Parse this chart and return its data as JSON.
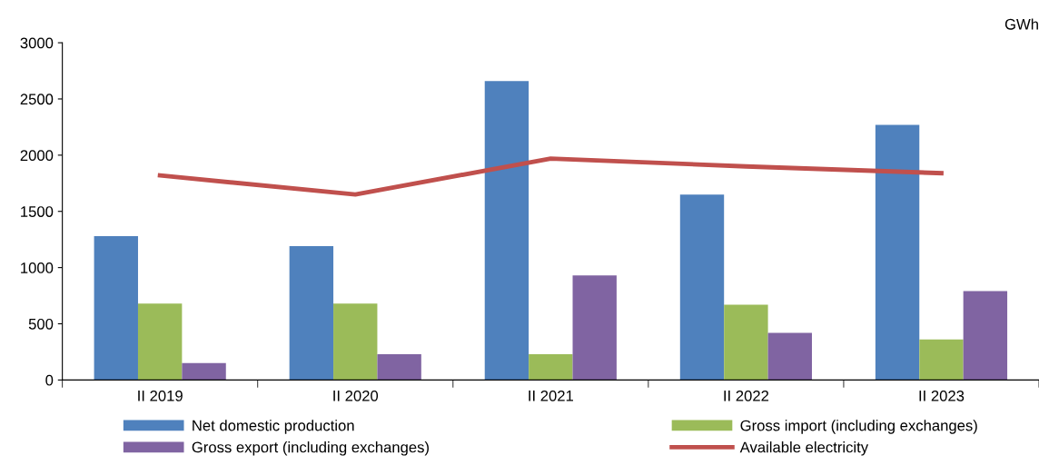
{
  "chart_data": {
    "type": "bar",
    "ylabel": "GWh",
    "categories": [
      "II 2019",
      "II 2020",
      "II 2021",
      "II 2022",
      "II 2023"
    ],
    "series": [
      {
        "name": "Net domestic production",
        "color": "#4f81bd",
        "values": [
          1280,
          1190,
          2660,
          1650,
          2270
        ]
      },
      {
        "name": "Gross import (including exchanges)",
        "color": "#9bbb59",
        "values": [
          680,
          680,
          230,
          670,
          360
        ]
      },
      {
        "name": "Gross export (including exchanges)",
        "color": "#8064a2",
        "values": [
          150,
          230,
          930,
          420,
          790
        ]
      },
      {
        "name": "Available electricity",
        "color": "#c0504d",
        "type": "line",
        "values": [
          1820,
          1650,
          1970,
          1900,
          1840
        ]
      }
    ],
    "ylim": [
      0,
      3000
    ],
    "yticks": [
      0,
      500,
      1000,
      1500,
      2000,
      2500,
      3000
    ],
    "grid": false,
    "legend": "bottom",
    "marker": "none",
    "line_style": "solid"
  }
}
